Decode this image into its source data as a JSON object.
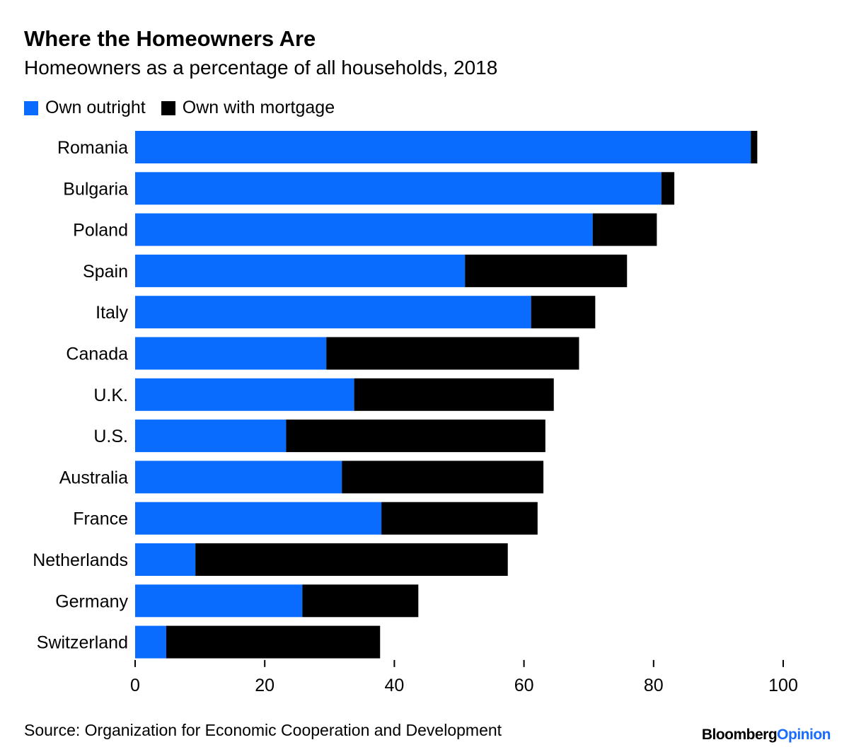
{
  "chart_data": {
    "type": "bar",
    "orientation": "horizontal",
    "stacked": true,
    "title": "Where the Homeowners Are",
    "subtitle": "Homeowners as a percentage of all households, 2018",
    "categories": [
      "Romania",
      "Bulgaria",
      "Poland",
      "Spain",
      "Italy",
      "Canada",
      "U.K.",
      "U.S.",
      "Australia",
      "France",
      "Netherlands",
      "Germany",
      "Switzerland"
    ],
    "series": [
      {
        "name": "Own outright",
        "color": "#0a6cff",
        "values": [
          95.0,
          81.2,
          70.6,
          50.9,
          61.1,
          29.5,
          33.8,
          23.3,
          31.9,
          38.0,
          9.3,
          25.8,
          4.8
        ]
      },
      {
        "name": "Own with mortgage",
        "color": "#000000",
        "values": [
          1.0,
          2.0,
          9.9,
          25.0,
          9.9,
          39.0,
          30.8,
          40.0,
          31.1,
          24.1,
          48.2,
          17.9,
          33.0
        ]
      }
    ],
    "xlim": [
      0,
      100
    ],
    "xticks": [
      0,
      20,
      40,
      60,
      80,
      100
    ],
    "xlabel": "",
    "ylabel": "",
    "grid": false,
    "legend_position": "top-left",
    "source": "Source: Organization for Economic Cooperation and Development"
  },
  "branding": {
    "part1": "Bloomberg",
    "part2": "Opinion"
  }
}
